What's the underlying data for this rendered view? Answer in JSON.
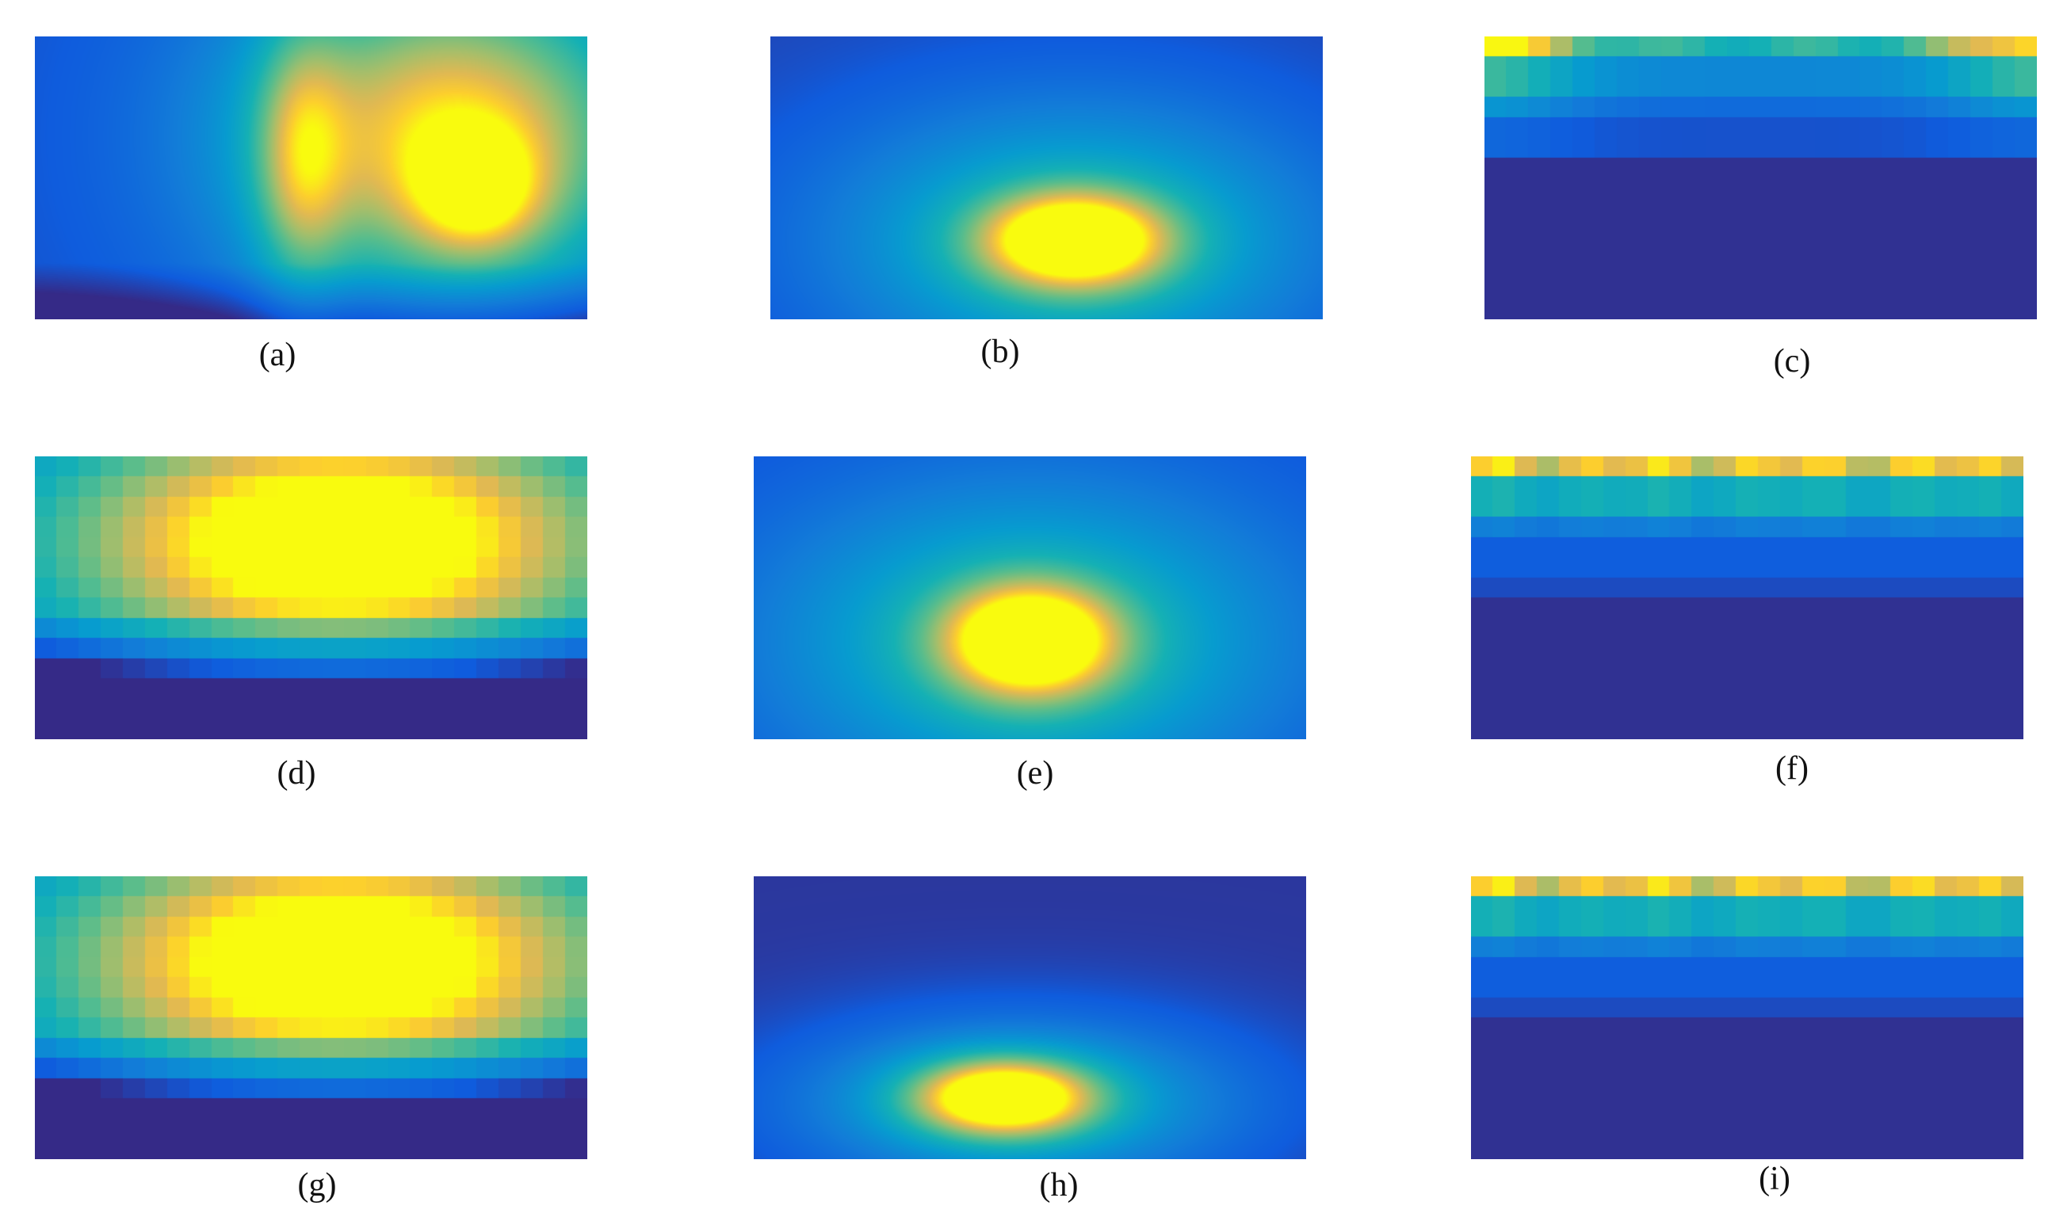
{
  "figure": {
    "colormap": "parula",
    "panels": [
      {
        "id": "a",
        "caption": "(a)",
        "pattern": "warm-upper-right-with-hotspot"
      },
      {
        "id": "b",
        "caption": "(b)",
        "pattern": "central-lower-blob"
      },
      {
        "id": "c",
        "caption": "(c)",
        "pattern": "top-row-stripes"
      },
      {
        "id": "d",
        "caption": "(d)",
        "pattern": "wide-warm-dome"
      },
      {
        "id": "e",
        "caption": "(e)",
        "pattern": "central-blob"
      },
      {
        "id": "f",
        "caption": "(f)",
        "pattern": "top-row-stripes-uniform"
      },
      {
        "id": "g",
        "caption": "(g)",
        "pattern": "wide-warm-dome"
      },
      {
        "id": "h",
        "caption": "(h)",
        "pattern": "low-central-blob"
      },
      {
        "id": "i",
        "caption": "(i)",
        "pattern": "top-row-stripes-uniform"
      }
    ]
  }
}
